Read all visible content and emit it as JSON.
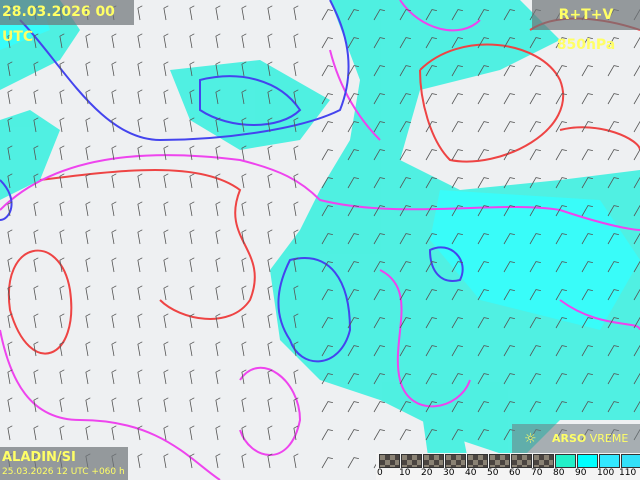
{
  "header": {
    "valid_time": "28.03.2026 00 UTC",
    "parameter": "R+T+V 850hPa"
  },
  "footer": {
    "model": "ALADIN/SI",
    "run_info": "25.03.2026 12 UTC +060 h"
  },
  "logo": {
    "brand": "ARSO",
    "product": "VREME",
    "icon": "sun-icon"
  },
  "legend": {
    "ticks": [
      "0",
      "10",
      "20",
      "30",
      "40",
      "50",
      "60",
      "70",
      "80",
      "90",
      "100",
      "110"
    ],
    "colors": [
      "checker",
      "checker",
      "checker",
      "checker",
      "checker",
      "checker",
      "checker",
      "checker",
      "#22f0c8",
      "#00ffff",
      "#33e8ff",
      "#33e0f8"
    ]
  },
  "colors": {
    "humidity_fill": "#3ef0e0",
    "isotherm_warm": "#ee4444",
    "isotherm_zero": "#ee44ee",
    "isotherm_cold": "#4444ee"
  }
}
